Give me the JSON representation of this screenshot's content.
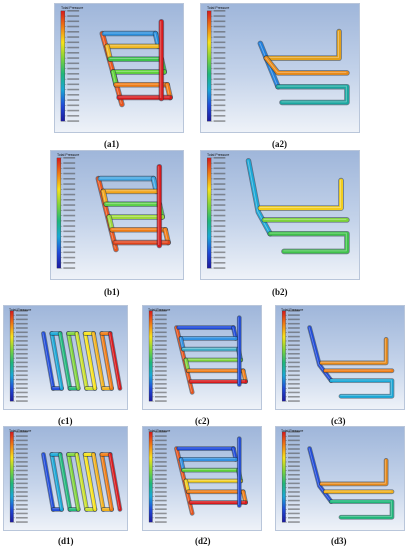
{
  "figures": [
    {
      "id": "a1",
      "caption": "(a1)",
      "colorbar_title": "Total Pressure"
    },
    {
      "id": "a2",
      "caption": "(a2)",
      "colorbar_title": "Total Pressure"
    },
    {
      "id": "b1",
      "caption": "(b1)",
      "colorbar_title": "Total Pressure"
    },
    {
      "id": "b2",
      "caption": "(b2)",
      "colorbar_title": "Total Pressure"
    },
    {
      "id": "c1",
      "caption": "(c1)",
      "colorbar_title": "Total Pressure"
    },
    {
      "id": "c2",
      "caption": "(c2)",
      "colorbar_title": "Total Pressure"
    },
    {
      "id": "c3",
      "caption": "(c3)",
      "colorbar_title": "Total Pressure"
    },
    {
      "id": "d1",
      "caption": "(d1)",
      "colorbar_title": "Total Pressure"
    },
    {
      "id": "d2",
      "caption": "(d2)",
      "colorbar_title": "Total Pressure"
    },
    {
      "id": "d3",
      "caption": "(d3)",
      "colorbar_title": "Total Pressure"
    }
  ],
  "colors": {
    "legend_gradient": [
      "#d7191c",
      "#f07c14",
      "#f7e21b",
      "#7fd43a",
      "#1fb77a",
      "#1aa7d6",
      "#1f4ad8",
      "#1c1a9e"
    ],
    "background_top": "#9fb6da",
    "background_bottom": "#eef2f8"
  }
}
